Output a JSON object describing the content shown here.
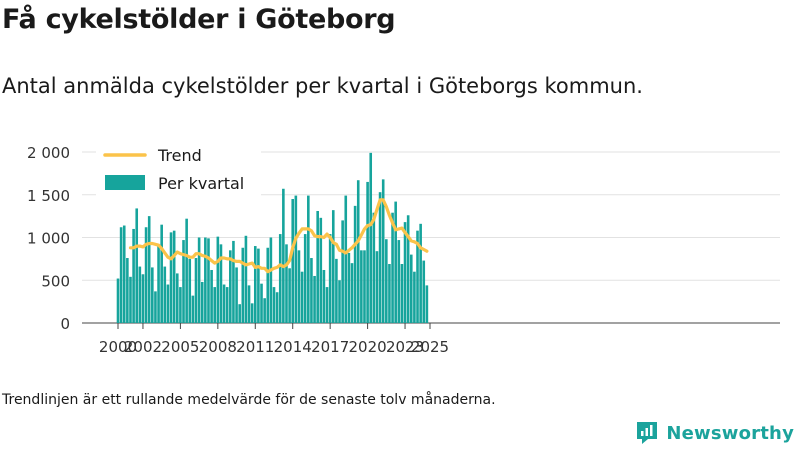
{
  "title": "Få cykelstölder i Göteborg",
  "subtitle": "Antal anmälda cykelstölder per kvartal i Göteborgs kommun.",
  "note": "Trendlinjen är ett rullande medelvärde för de senaste tolv månaderna.",
  "brand": "Newsworthy",
  "colors": {
    "bars": "#16a49c",
    "trend": "#fbc34a",
    "brand": "#1ba39c",
    "grid": "#e2e2e2"
  },
  "chart_data": {
    "type": "bar",
    "ylim": [
      0,
      2000
    ],
    "yticks": [
      0,
      500,
      1000,
      1500,
      2000
    ],
    "ytick_labels": [
      "0",
      "500",
      "1 000",
      "1 500",
      "2 000"
    ],
    "xticks": [
      "2000",
      "2002",
      "2005",
      "2008",
      "2011",
      "2014",
      "2017",
      "2020",
      "2023",
      "2025"
    ],
    "legend_position": "top-left",
    "series": [
      {
        "name": "Per kvartal",
        "type": "bar",
        "values": [
          520,
          1120,
          1140,
          760,
          540,
          1100,
          1340,
          660,
          570,
          1120,
          1250,
          650,
          370,
          920,
          1150,
          660,
          450,
          1060,
          1080,
          580,
          420,
          970,
          1220,
          750,
          320,
          760,
          1000,
          480,
          1000,
          990,
          620,
          420,
          1010,
          920,
          450,
          420,
          850,
          960,
          650,
          220,
          880,
          1020,
          440,
          230,
          900,
          870,
          460,
          290,
          880,
          1000,
          420,
          360,
          1040,
          1570,
          920,
          640,
          1450,
          1490,
          850,
          600,
          1040,
          1490,
          760,
          550,
          1310,
          1230,
          620,
          420,
          1040,
          1320,
          750,
          500,
          1200,
          1490,
          820,
          700,
          1370,
          1670,
          850,
          850,
          1650,
          1990,
          1290,
          840,
          1530,
          1680,
          980,
          690,
          1290,
          1420,
          970,
          690,
          1180,
          1260,
          800,
          600,
          1080,
          1160,
          730,
          440
        ]
      },
      {
        "name": "Trend",
        "type": "line",
        "values": [
          880,
          880,
          900,
          900,
          890,
          920,
          930,
          930,
          920,
          910,
          870,
          820,
          770,
          750,
          790,
          830,
          810,
          800,
          790,
          770,
          770,
          810,
          810,
          790,
          780,
          760,
          730,
          700,
          720,
          760,
          760,
          750,
          750,
          730,
          720,
          720,
          700,
          680,
          690,
          700,
          650,
          660,
          640,
          640,
          600,
          620,
          640,
          650,
          680,
          660,
          680,
          730,
          880,
          990,
          1050,
          1100,
          1100,
          1100,
          1080,
          1020,
          1010,
          1010,
          1000,
          1040,
          1000,
          940,
          920,
          850,
          840,
          820,
          850,
          880,
          920,
          960,
          1030,
          1100,
          1140,
          1150,
          1210,
          1330,
          1440,
          1440,
          1360,
          1260,
          1170,
          1090,
          1100,
          1110,
          1060,
          1010,
          960,
          950,
          930,
          880,
          860,
          840
        ]
      }
    ],
    "x_start": 2000,
    "quarters_per_year": 4
  }
}
